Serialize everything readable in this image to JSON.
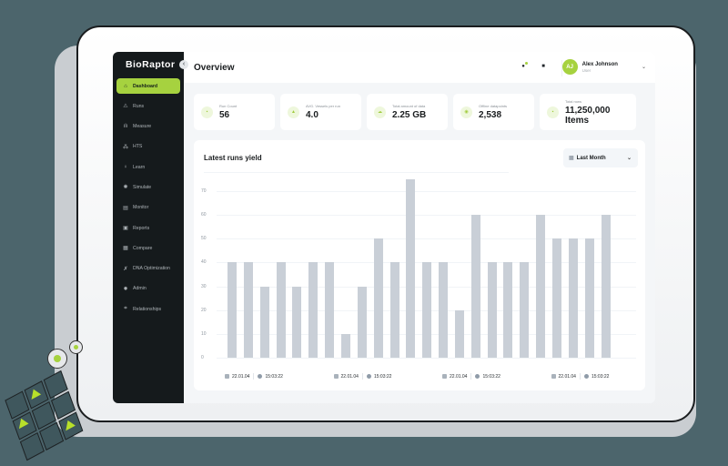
{
  "app": {
    "logo": "BioRaptor",
    "page_title": "Overview",
    "colors": {
      "accent": "#a6d23f",
      "sidebar_bg": "#151a1c",
      "bar": "#c9cfd7",
      "backdrop": "#4c656c"
    }
  },
  "sidebar": {
    "collapse_icon": "‹",
    "items": [
      {
        "label": "Dashboard",
        "icon": "⌂",
        "icon_name": "home-icon",
        "active": true
      },
      {
        "label": "Runs",
        "icon": "⚠",
        "icon_name": "flask-icon"
      },
      {
        "label": "Measure",
        "icon": "ılı",
        "icon_name": "bar-chart-icon"
      },
      {
        "label": "HTS",
        "icon": "⁂",
        "icon_name": "molecule-icon"
      },
      {
        "label": "Learn",
        "icon": "♀",
        "icon_name": "lightbulb-icon"
      },
      {
        "label": "Simulate",
        "icon": "✺",
        "icon_name": "simulate-icon"
      },
      {
        "label": "Monitor",
        "icon": "▤",
        "icon_name": "monitor-icon"
      },
      {
        "label": "Reports",
        "icon": "▣",
        "icon_name": "reports-icon"
      },
      {
        "label": "Compare",
        "icon": "▦",
        "icon_name": "compare-icon"
      },
      {
        "label": "DNA Optimization",
        "icon": "✗",
        "icon_name": "dna-icon"
      },
      {
        "label": "Admin",
        "icon": "✹",
        "icon_name": "gear-icon"
      },
      {
        "label": "Relationships",
        "icon": "⌗",
        "icon_name": "relationships-icon"
      }
    ]
  },
  "header": {
    "notification_icon": "●",
    "message_icon": "■",
    "user": {
      "initials": "AJ",
      "name": "Alex Johnson",
      "role": "User",
      "chevron": "⌄"
    }
  },
  "stats": [
    {
      "label": "Run Count",
      "value": "56",
      "icon": "▪"
    },
    {
      "label": "AVG. Vessels per run",
      "value": "4.0",
      "icon": "▲"
    },
    {
      "label": "Total amount of data",
      "value": "2.25 GB",
      "icon": "☁"
    },
    {
      "label": "Offline datapoints",
      "value": "2,538",
      "icon": "◉"
    },
    {
      "label": "Total rows",
      "value": "11,250,000 Items",
      "icon": "▪"
    }
  ],
  "chart_card": {
    "title": "Latest runs yield",
    "period": {
      "selected": "Last Month",
      "icon": "▦",
      "chevron": "⌄"
    },
    "x_labels": [
      {
        "date": "22.01.04",
        "time": "15:03:22"
      },
      {
        "date": "22.01.04",
        "time": "15:03:22"
      },
      {
        "date": "22.01.04",
        "time": "15:03:22"
      },
      {
        "date": "22.01.04",
        "time": "15:03:22"
      }
    ]
  },
  "chart_data": {
    "type": "bar",
    "title": "Latest runs yield",
    "xlabel": "",
    "ylabel": "",
    "ylim": [
      0,
      75
    ],
    "yticks": [
      0,
      10,
      20,
      30,
      40,
      50,
      60,
      70
    ],
    "grid": true,
    "legend": null,
    "categories": [
      "1",
      "2",
      "3",
      "4",
      "5",
      "6",
      "7",
      "8",
      "9",
      "10",
      "11",
      "12",
      "13",
      "14",
      "15",
      "16",
      "17",
      "18",
      "19",
      "20",
      "21",
      "22",
      "23",
      "24"
    ],
    "tick_labels": [
      "22.01.04 15:03:22",
      "22.01.04 15:03:22",
      "22.01.04 15:03:22",
      "22.01.04 15:03:22"
    ],
    "values": [
      40,
      40,
      30,
      40,
      30,
      40,
      40,
      10,
      30,
      50,
      40,
      75,
      40,
      40,
      20,
      60,
      40,
      40,
      40,
      60,
      50,
      50,
      50,
      60
    ]
  }
}
